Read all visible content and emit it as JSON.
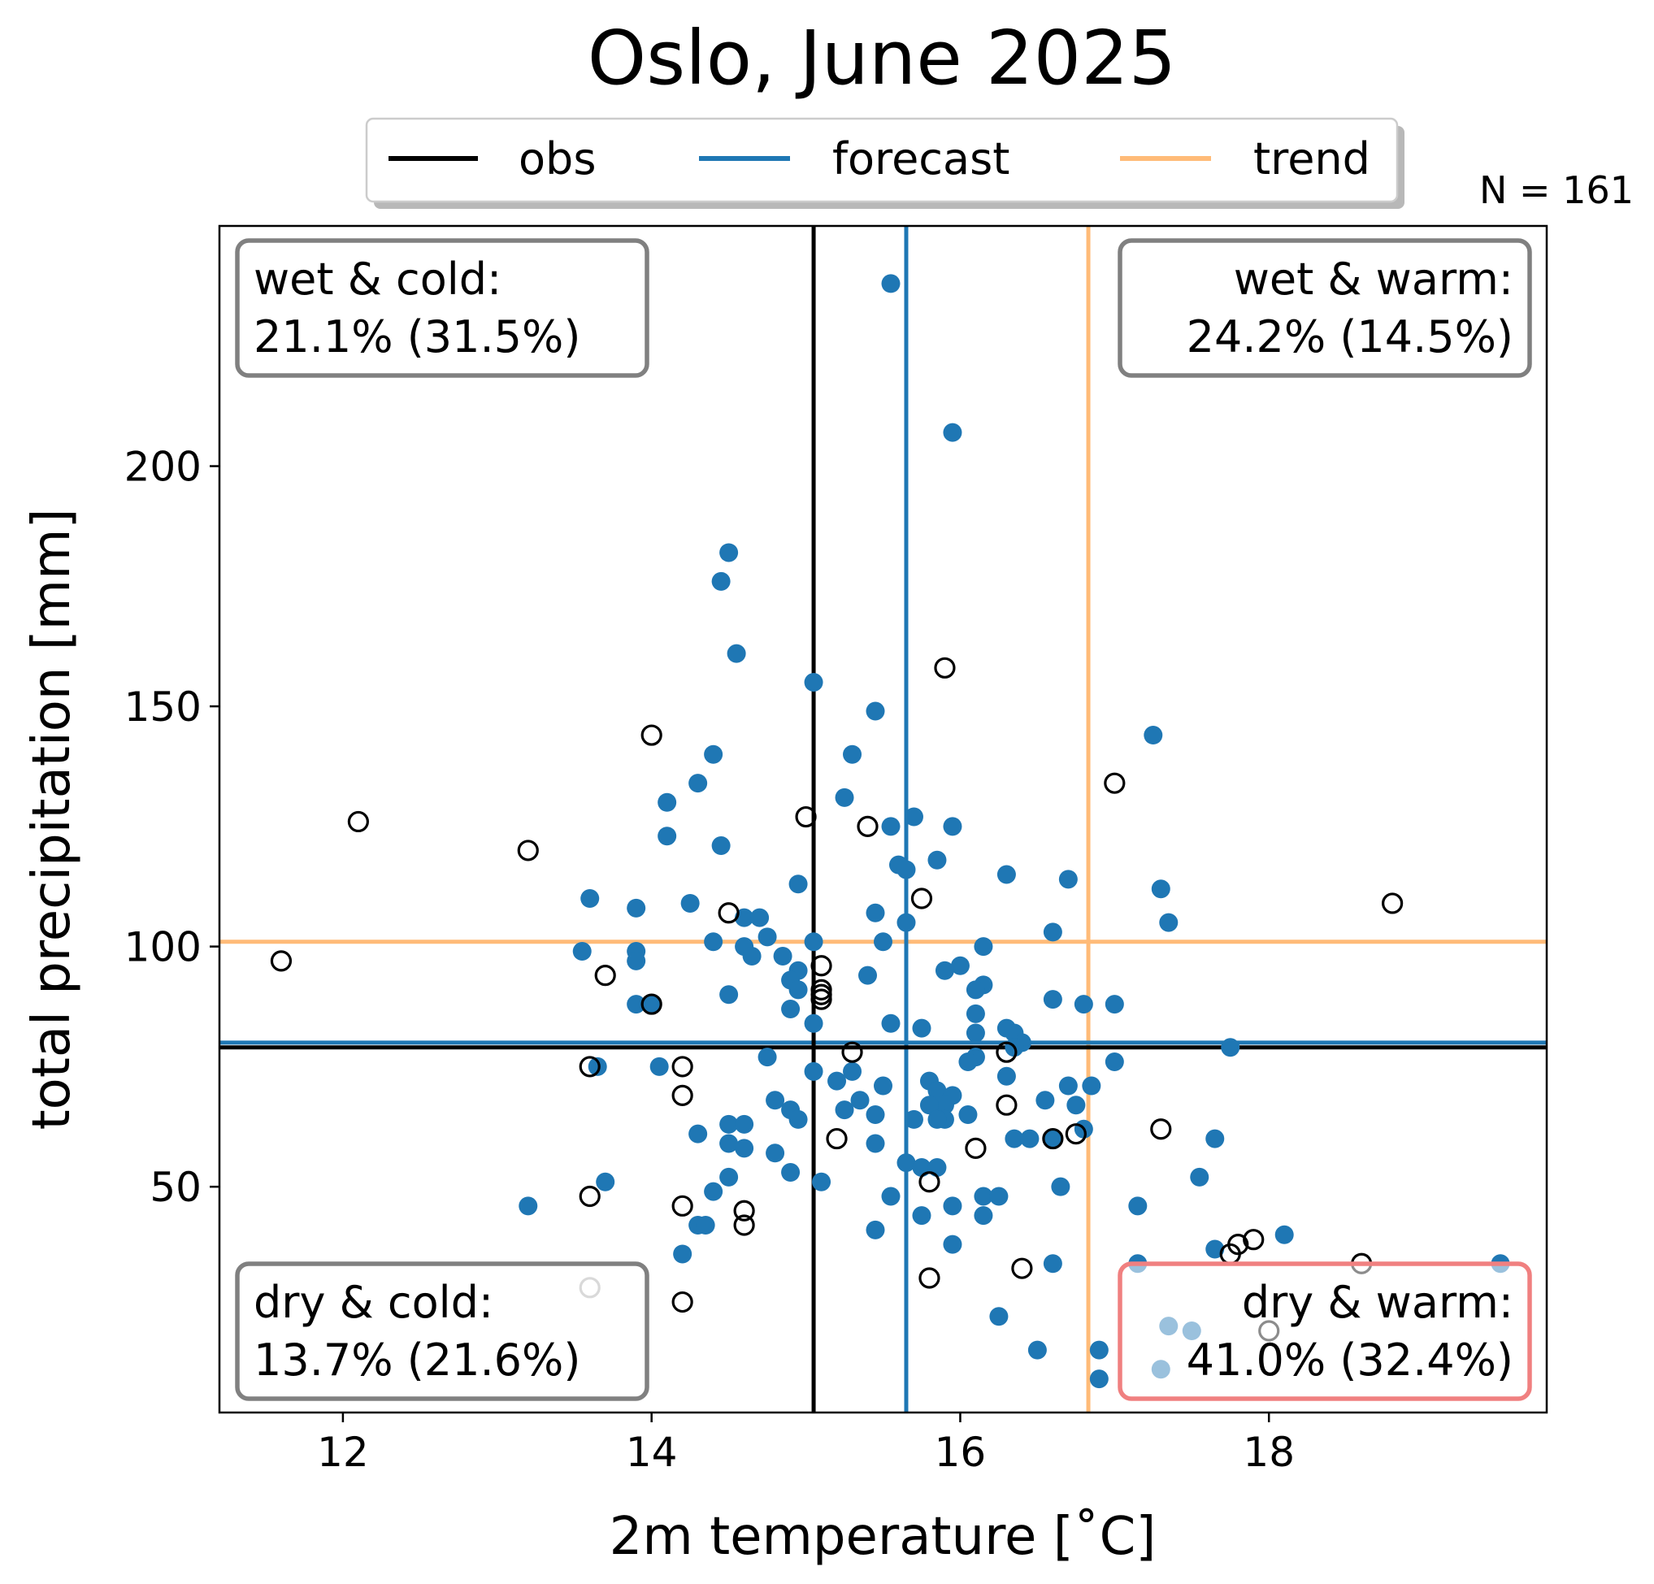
{
  "chart_data": {
    "type": "scatter",
    "title": "Oslo, June 2025",
    "xlabel": "2m temperature [˚C]",
    "ylabel": "total precipitation [mm]",
    "xlim": [
      11.2,
      19.8
    ],
    "ylim": [
      3,
      250
    ],
    "xticks": [
      12,
      14,
      16,
      18
    ],
    "yticks": [
      50,
      100,
      150,
      200
    ],
    "n_label": "N = 161",
    "legend": {
      "position": "top-center",
      "entries": [
        {
          "label": "obs",
          "color": "#000000"
        },
        {
          "label": "forecast",
          "color": "#1f77b4"
        },
        {
          "label": "trend",
          "color": "#ffbb78"
        }
      ]
    },
    "reference_lines": {
      "obs": {
        "x": 15.05,
        "y": 79,
        "color": "#000000"
      },
      "forecast": {
        "x": 15.65,
        "y": 80,
        "color": "#1f77b4"
      },
      "trend": {
        "x": 16.83,
        "y": 101,
        "color": "#ffbb78"
      }
    },
    "quadrants": [
      {
        "line1": "wet & cold:",
        "line2": "21.1% (31.5%)",
        "corner": "top-left",
        "border": "#808080"
      },
      {
        "line1": "wet & warm:",
        "line2": "24.2% (14.5%)",
        "corner": "top-right",
        "border": "#808080"
      },
      {
        "line1": "dry & cold:",
        "line2": "13.7% (21.6%)",
        "corner": "bottom-left",
        "border": "#808080"
      },
      {
        "line1": "dry & warm:",
        "line2": "41.0% (32.4%)",
        "corner": "bottom-right",
        "border": "#f08080"
      }
    ],
    "series": [
      {
        "name": "forecast",
        "marker": "filled",
        "color": "#1f77b4",
        "points": [
          [
            15.55,
            238
          ],
          [
            15.95,
            207
          ],
          [
            14.5,
            182
          ],
          [
            14.45,
            176
          ],
          [
            14.55,
            161
          ],
          [
            15.05,
            155
          ],
          [
            15.45,
            149
          ],
          [
            17.25,
            144
          ],
          [
            14.4,
            140
          ],
          [
            15.3,
            140
          ],
          [
            14.3,
            134
          ],
          [
            15.25,
            131
          ],
          [
            14.1,
            130
          ],
          [
            15.7,
            127
          ],
          [
            15.55,
            125
          ],
          [
            15.95,
            125
          ],
          [
            14.1,
            123
          ],
          [
            14.45,
            121
          ],
          [
            15.85,
            118
          ],
          [
            15.6,
            117
          ],
          [
            15.65,
            116
          ],
          [
            16.3,
            115
          ],
          [
            16.7,
            114
          ],
          [
            17.3,
            112
          ],
          [
            14.95,
            113
          ],
          [
            13.6,
            110
          ],
          [
            14.25,
            109
          ],
          [
            13.9,
            108
          ],
          [
            14.6,
            106
          ],
          [
            14.7,
            106
          ],
          [
            15.45,
            107
          ],
          [
            15.65,
            105
          ],
          [
            17.35,
            105
          ],
          [
            16.6,
            103
          ],
          [
            14.75,
            102
          ],
          [
            15.05,
            101
          ],
          [
            14.4,
            101
          ],
          [
            15.5,
            101
          ],
          [
            16.15,
            100
          ],
          [
            14.6,
            100
          ],
          [
            13.55,
            99
          ],
          [
            13.9,
            99
          ],
          [
            14.65,
            98
          ],
          [
            14.85,
            98
          ],
          [
            13.9,
            97
          ],
          [
            16.0,
            96
          ],
          [
            15.9,
            95
          ],
          [
            15.4,
            94
          ],
          [
            14.95,
            95
          ],
          [
            14.9,
            93
          ],
          [
            14.95,
            91
          ],
          [
            16.15,
            92
          ],
          [
            16.1,
            91
          ],
          [
            14.5,
            90
          ],
          [
            16.6,
            89
          ],
          [
            16.8,
            88
          ],
          [
            17.0,
            88
          ],
          [
            13.9,
            88
          ],
          [
            14.0,
            88
          ],
          [
            14.9,
            87
          ],
          [
            16.1,
            86
          ],
          [
            15.05,
            84
          ],
          [
            15.55,
            84
          ],
          [
            15.75,
            83
          ],
          [
            16.3,
            83
          ],
          [
            16.35,
            82
          ],
          [
            16.1,
            82
          ],
          [
            16.4,
            80
          ],
          [
            16.35,
            79
          ],
          [
            17.75,
            79
          ],
          [
            16.1,
            77
          ],
          [
            16.05,
            76
          ],
          [
            17.0,
            76
          ],
          [
            14.75,
            77
          ],
          [
            15.05,
            74
          ],
          [
            15.3,
            74
          ],
          [
            16.3,
            73
          ],
          [
            15.2,
            72
          ],
          [
            15.8,
            72
          ],
          [
            15.5,
            71
          ],
          [
            15.85,
            70
          ],
          [
            16.7,
            71
          ],
          [
            16.85,
            71
          ],
          [
            15.95,
            69
          ],
          [
            13.65,
            75
          ],
          [
            14.05,
            75
          ],
          [
            14.8,
            68
          ],
          [
            16.55,
            68
          ],
          [
            15.35,
            68
          ],
          [
            16.75,
            67
          ],
          [
            15.9,
            67
          ],
          [
            15.8,
            67
          ],
          [
            14.9,
            66
          ],
          [
            15.25,
            66
          ],
          [
            15.45,
            65
          ],
          [
            15.9,
            64
          ],
          [
            16.05,
            65
          ],
          [
            15.7,
            64
          ],
          [
            15.85,
            64
          ],
          [
            14.95,
            64
          ],
          [
            14.5,
            63
          ],
          [
            14.6,
            63
          ],
          [
            14.3,
            61
          ],
          [
            16.35,
            60
          ],
          [
            16.45,
            60
          ],
          [
            17.65,
            60
          ],
          [
            14.5,
            59
          ],
          [
            14.6,
            58
          ],
          [
            15.45,
            59
          ],
          [
            16.6,
            60
          ],
          [
            16.8,
            62
          ],
          [
            14.8,
            57
          ],
          [
            15.65,
            55
          ],
          [
            15.75,
            54
          ],
          [
            15.85,
            54
          ],
          [
            14.9,
            53
          ],
          [
            14.5,
            52
          ],
          [
            15.1,
            51
          ],
          [
            17.55,
            52
          ],
          [
            13.7,
            51
          ],
          [
            16.65,
            50
          ],
          [
            14.4,
            49
          ],
          [
            15.55,
            48
          ],
          [
            16.15,
            48
          ],
          [
            16.25,
            48
          ],
          [
            17.15,
            46
          ],
          [
            13.2,
            46
          ],
          [
            15.95,
            46
          ],
          [
            15.75,
            44
          ],
          [
            16.15,
            44
          ],
          [
            14.3,
            42
          ],
          [
            14.35,
            42
          ],
          [
            15.45,
            41
          ],
          [
            18.1,
            40
          ],
          [
            15.95,
            38
          ],
          [
            17.65,
            37
          ],
          [
            14.2,
            36
          ],
          [
            17.15,
            34
          ],
          [
            16.6,
            34
          ],
          [
            19.5,
            34
          ],
          [
            16.25,
            23
          ],
          [
            16.5,
            16
          ],
          [
            16.9,
            16
          ],
          [
            16.9,
            10
          ],
          [
            17.3,
            12
          ],
          [
            17.5,
            20
          ],
          [
            17.35,
            21
          ]
        ]
      },
      {
        "name": "obs",
        "marker": "open",
        "color": "#000000",
        "points": [
          [
            15.9,
            158
          ],
          [
            14.0,
            144
          ],
          [
            17.0,
            134
          ],
          [
            15.0,
            127
          ],
          [
            12.1,
            126
          ],
          [
            15.4,
            125
          ],
          [
            13.2,
            120
          ],
          [
            15.75,
            110
          ],
          [
            18.8,
            109
          ],
          [
            14.5,
            107
          ],
          [
            11.6,
            97
          ],
          [
            15.1,
            96
          ],
          [
            13.7,
            94
          ],
          [
            15.1,
            91
          ],
          [
            15.1,
            90
          ],
          [
            15.1,
            89
          ],
          [
            14.0,
            88
          ],
          [
            15.3,
            78
          ],
          [
            16.3,
            78
          ],
          [
            13.6,
            75
          ],
          [
            14.2,
            75
          ],
          [
            14.2,
            69
          ],
          [
            16.3,
            67
          ],
          [
            17.3,
            62
          ],
          [
            16.75,
            61
          ],
          [
            16.6,
            60
          ],
          [
            15.2,
            60
          ],
          [
            16.1,
            58
          ],
          [
            15.8,
            51
          ],
          [
            13.6,
            48
          ],
          [
            14.2,
            46
          ],
          [
            14.6,
            45
          ],
          [
            14.6,
            42
          ],
          [
            17.9,
            39
          ],
          [
            17.8,
            38
          ],
          [
            17.75,
            36
          ],
          [
            18.6,
            34
          ],
          [
            16.4,
            33
          ],
          [
            15.8,
            31
          ],
          [
            13.6,
            29
          ],
          [
            14.2,
            26
          ],
          [
            18.0,
            20
          ]
        ]
      }
    ]
  }
}
